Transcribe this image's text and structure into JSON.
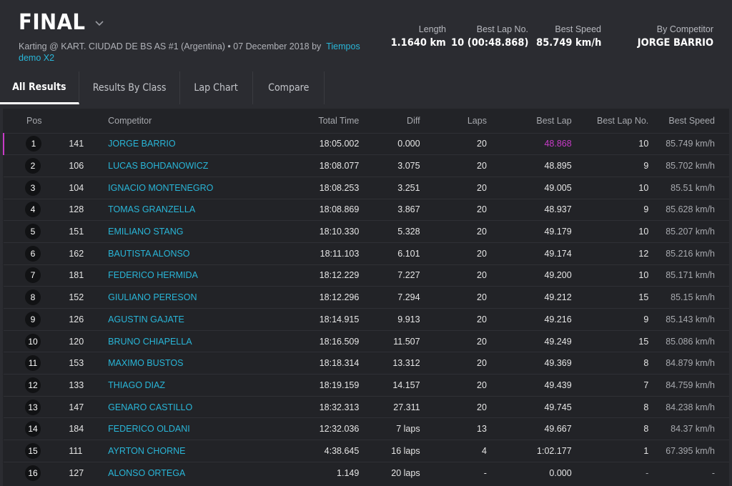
{
  "header": {
    "title": "FINAL",
    "subtitle_text": "Karting @ KART. CIUDAD DE BS AS #1 (Argentina) • 07 December 2018 by",
    "subtitle_link": "Tiempos demo X2",
    "stats": [
      {
        "label": "Length",
        "value": "1.1640 km"
      },
      {
        "label": "Best Lap No.",
        "value": "10 (00:48.868)"
      },
      {
        "label": "Best Speed",
        "value": "85.749 km/h"
      },
      {
        "label": "By Competitor",
        "value": "JORGE BARRIO"
      }
    ]
  },
  "tabs": [
    "All Results",
    "Results By Class",
    "Lap Chart",
    "Compare"
  ],
  "table": {
    "headers": [
      "Pos",
      "Competitor",
      "Total Time",
      "Diff",
      "Laps",
      "Best Lap",
      "Best Lap No.",
      "Best Speed"
    ],
    "rows": [
      {
        "pos": "1",
        "num": "141",
        "name": "JORGE BARRIO",
        "total": "18:05.002",
        "diff": "0.000",
        "laps": "20",
        "best": "48.868",
        "bln": "10",
        "speed": "85.749 km/h"
      },
      {
        "pos": "2",
        "num": "106",
        "name": "LUCAS BOHDANOWICZ",
        "total": "18:08.077",
        "diff": "3.075",
        "laps": "20",
        "best": "48.895",
        "bln": "9",
        "speed": "85.702 km/h"
      },
      {
        "pos": "3",
        "num": "104",
        "name": "IGNACIO MONTENEGRO",
        "total": "18:08.253",
        "diff": "3.251",
        "laps": "20",
        "best": "49.005",
        "bln": "10",
        "speed": "85.51 km/h"
      },
      {
        "pos": "4",
        "num": "128",
        "name": "TOMAS GRANZELLA",
        "total": "18:08.869",
        "diff": "3.867",
        "laps": "20",
        "best": "48.937",
        "bln": "9",
        "speed": "85.628 km/h"
      },
      {
        "pos": "5",
        "num": "151",
        "name": "EMILIANO STANG",
        "total": "18:10.330",
        "diff": "5.328",
        "laps": "20",
        "best": "49.179",
        "bln": "10",
        "speed": "85.207 km/h"
      },
      {
        "pos": "6",
        "num": "162",
        "name": "BAUTISTA ALONSO",
        "total": "18:11.103",
        "diff": "6.101",
        "laps": "20",
        "best": "49.174",
        "bln": "12",
        "speed": "85.216 km/h"
      },
      {
        "pos": "7",
        "num": "181",
        "name": "FEDERICO HERMIDA",
        "total": "18:12.229",
        "diff": "7.227",
        "laps": "20",
        "best": "49.200",
        "bln": "10",
        "speed": "85.171 km/h"
      },
      {
        "pos": "8",
        "num": "152",
        "name": "GIULIANO PERESON",
        "total": "18:12.296",
        "diff": "7.294",
        "laps": "20",
        "best": "49.212",
        "bln": "15",
        "speed": "85.15 km/h"
      },
      {
        "pos": "9",
        "num": "126",
        "name": "AGUSTIN GAJATE",
        "total": "18:14.915",
        "diff": "9.913",
        "laps": "20",
        "best": "49.216",
        "bln": "9",
        "speed": "85.143 km/h"
      },
      {
        "pos": "10",
        "num": "120",
        "name": "BRUNO CHIAPELLA",
        "total": "18:16.509",
        "diff": "11.507",
        "laps": "20",
        "best": "49.249",
        "bln": "15",
        "speed": "85.086 km/h"
      },
      {
        "pos": "11",
        "num": "153",
        "name": "MAXIMO BUSTOS",
        "total": "18:18.314",
        "diff": "13.312",
        "laps": "20",
        "best": "49.369",
        "bln": "8",
        "speed": "84.879 km/h"
      },
      {
        "pos": "12",
        "num": "133",
        "name": "THIAGO DIAZ",
        "total": "18:19.159",
        "diff": "14.157",
        "laps": "20",
        "best": "49.439",
        "bln": "7",
        "speed": "84.759 km/h"
      },
      {
        "pos": "13",
        "num": "147",
        "name": "GENARO CASTILLO",
        "total": "18:32.313",
        "diff": "27.311",
        "laps": "20",
        "best": "49.745",
        "bln": "8",
        "speed": "84.238 km/h"
      },
      {
        "pos": "14",
        "num": "184",
        "name": "FEDERICO OLDANI",
        "total": "12:32.036",
        "diff": "7 laps",
        "laps": "13",
        "best": "49.667",
        "bln": "8",
        "speed": "84.37 km/h"
      },
      {
        "pos": "15",
        "num": "111",
        "name": "AYRTON CHORNE",
        "total": "4:38.645",
        "diff": "16 laps",
        "laps": "4",
        "best": "1:02.177",
        "bln": "1",
        "speed": "67.395 km/h"
      },
      {
        "pos": "16",
        "num": "127",
        "name": "ALONSO ORTEGA",
        "total": "1.149",
        "diff": "20 laps",
        "laps": "-",
        "best": "0.000",
        "bln": "-",
        "speed": "-"
      }
    ]
  },
  "colors": {
    "background": "#2b2c31",
    "table_background": "#222327",
    "link": "#29b6d8",
    "best_lap_highlight": "#c83bc8"
  },
  "icons": {
    "title_dropdown": "chevron-down-icon"
  }
}
